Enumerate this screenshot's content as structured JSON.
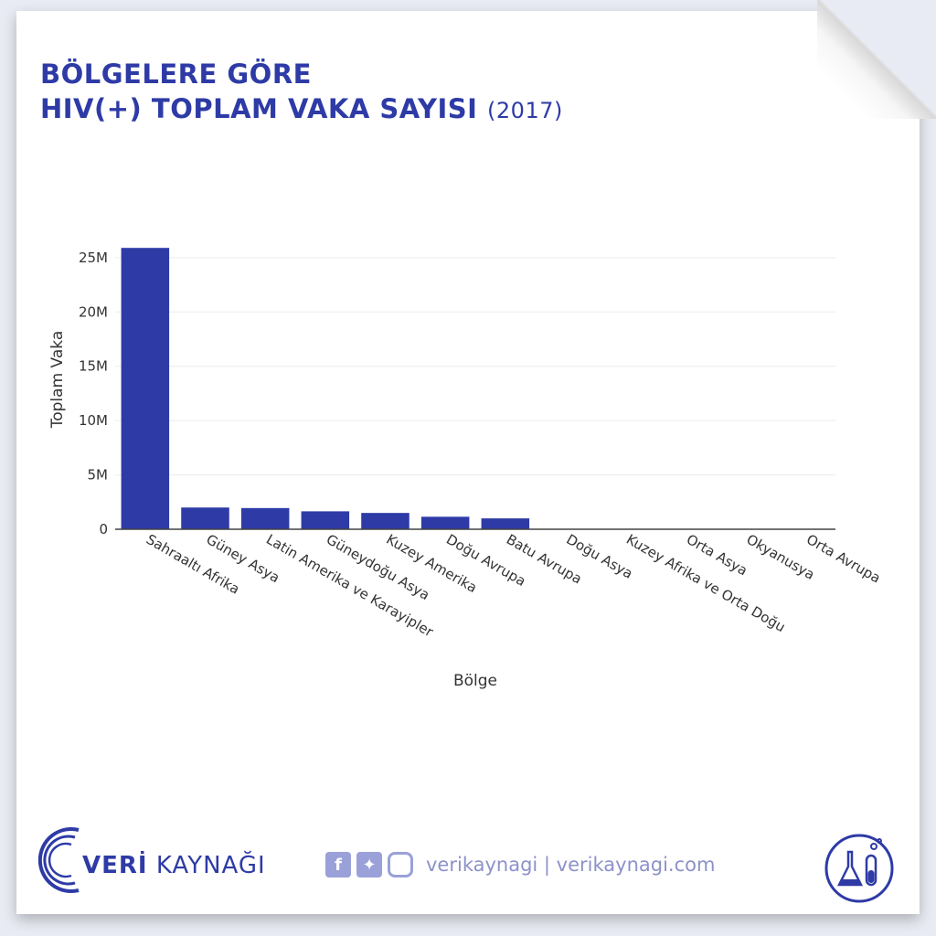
{
  "title": {
    "line1": "BÖLGELERE GÖRE",
    "line2": "HIV(+) TOPLAM VAKA SAYISI",
    "year": "(2017)"
  },
  "chart_data": {
    "type": "bar",
    "categories": [
      "Sahraaltı Afrika",
      "Güney Asya",
      "Latin Amerika ve Karayipler",
      "Güneydoğu Asya",
      "Kuzey Amerika",
      "Doğu Avrupa",
      "Batu Avrupa",
      "Doğu Asya",
      "Kuzey Afrika ve Orta Doğu",
      "Orta Asya",
      "Okyanusya",
      "Orta Avrupa"
    ],
    "values": [
      25900000,
      2000000,
      1950000,
      1650000,
      1500000,
      1150000,
      1000000,
      0,
      0,
      0,
      0,
      0
    ],
    "yticks": [
      0,
      5000000,
      10000000,
      15000000,
      20000000,
      25000000
    ],
    "ytick_labels": [
      "0",
      "5M",
      "10M",
      "15M",
      "20M",
      "25M"
    ],
    "ylim": [
      0,
      26000000
    ],
    "xlabel": "Bölge",
    "ylabel": "Toplam Vaka",
    "bar_color": "#2e3ba6",
    "grid": true
  },
  "footer": {
    "brand_bold": "VERİ",
    "brand_rest": " KAYNAĞI",
    "social_text": "verikaynagi | verikaynagi.com",
    "icons": [
      "facebook-icon",
      "twitter-icon",
      "instagram-icon"
    ]
  },
  "colors": {
    "accent": "#2e3ba6",
    "muted": "#9aa0d8"
  }
}
